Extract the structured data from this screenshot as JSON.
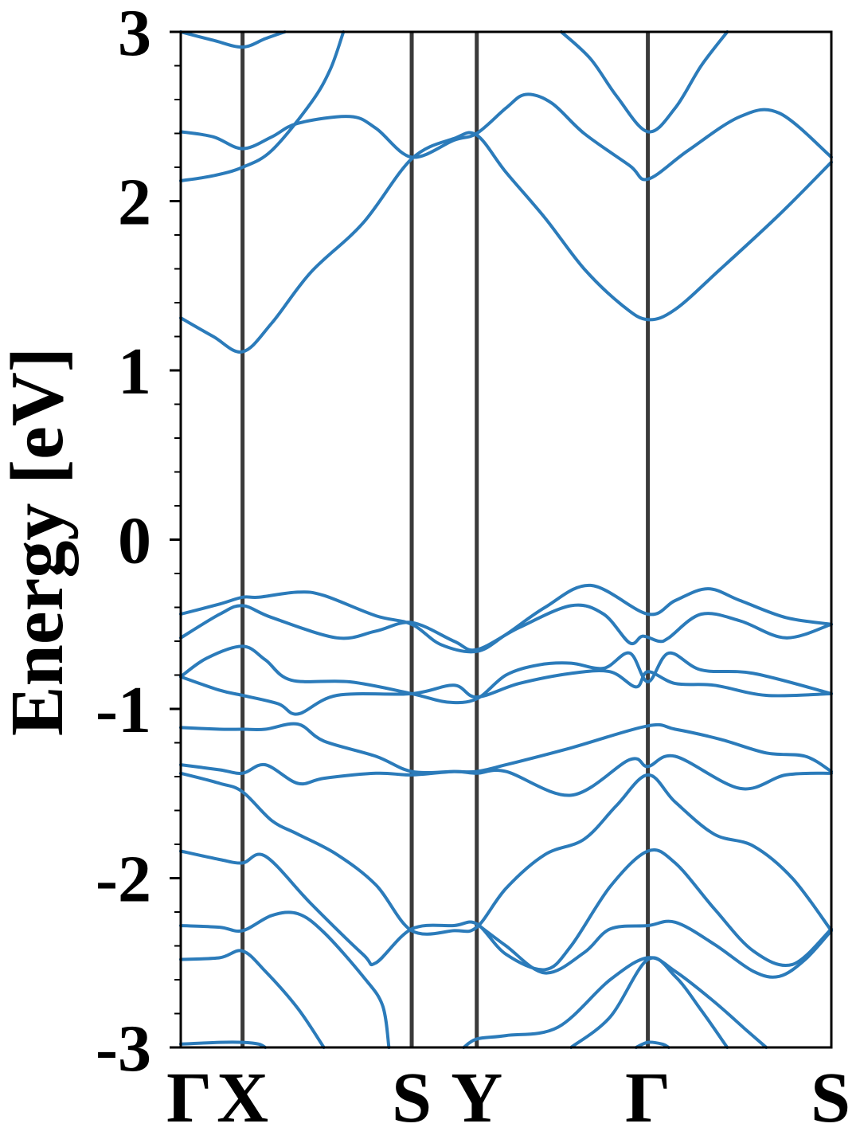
{
  "chart_data": {
    "type": "line",
    "title": "",
    "xlabel": "",
    "ylabel": "Energy [eV]",
    "ylim": [
      -3,
      3
    ],
    "yticks": [
      "-3",
      "-2",
      "-1",
      "0",
      "1",
      "2",
      "3"
    ],
    "minor_ytick_step": 0.2,
    "grid": false,
    "legend": "none",
    "line_color": "#2b7bba",
    "symmetry_line_color": "#3a3a3a",
    "kpath_labels": [
      "Γ",
      "X",
      "S",
      "Y",
      "Γ",
      "S"
    ],
    "kpath_positions": [
      0,
      0.095,
      0.355,
      0.455,
      0.718,
      1.0
    ],
    "bands": [
      [
        [
          0.0,
          2.41
        ],
        [
          0.05,
          2.38
        ],
        [
          0.095,
          2.31
        ],
        [
          0.14,
          2.38
        ],
        [
          0.18,
          2.46
        ],
        [
          0.26,
          2.5
        ],
        [
          0.3,
          2.43
        ],
        [
          0.355,
          2.26
        ],
        [
          0.42,
          2.36
        ],
        [
          0.455,
          2.4
        ],
        [
          0.5,
          2.55
        ],
        [
          0.53,
          2.63
        ],
        [
          0.57,
          2.58
        ],
        [
          0.62,
          2.4
        ],
        [
          0.69,
          2.21
        ],
        [
          0.718,
          2.13
        ],
        [
          0.78,
          2.3
        ],
        [
          0.86,
          2.5
        ],
        [
          0.92,
          2.52
        ],
        [
          1.0,
          2.26
        ]
      ],
      [
        [
          0.0,
          2.12
        ],
        [
          0.05,
          2.15
        ],
        [
          0.095,
          2.2
        ],
        [
          0.14,
          2.3
        ],
        [
          0.2,
          2.58
        ],
        [
          0.23,
          2.78
        ],
        [
          0.25,
          3.0
        ]
      ],
      [
        [
          0.0,
          1.31
        ],
        [
          0.05,
          1.2
        ],
        [
          0.095,
          1.11
        ],
        [
          0.14,
          1.28
        ],
        [
          0.2,
          1.58
        ],
        [
          0.28,
          1.87
        ],
        [
          0.355,
          2.25
        ],
        [
          0.42,
          2.37
        ],
        [
          0.455,
          2.39
        ],
        [
          0.5,
          2.17
        ],
        [
          0.56,
          1.9
        ],
        [
          0.62,
          1.6
        ],
        [
          0.68,
          1.38
        ],
        [
          0.718,
          1.3
        ],
        [
          0.76,
          1.36
        ],
        [
          0.83,
          1.6
        ],
        [
          0.92,
          1.92
        ],
        [
          1.0,
          2.23
        ]
      ],
      [
        [
          0.0,
          3.0
        ],
        [
          0.05,
          2.95
        ],
        [
          0.095,
          2.91
        ],
        [
          0.13,
          2.96
        ],
        [
          0.16,
          3.0
        ]
      ],
      [
        [
          0.585,
          3.0
        ],
        [
          0.63,
          2.84
        ],
        [
          0.67,
          2.62
        ],
        [
          0.718,
          2.41
        ],
        [
          0.76,
          2.55
        ],
        [
          0.8,
          2.8
        ],
        [
          0.84,
          3.0
        ]
      ],
      [
        [
          0.0,
          -0.44
        ],
        [
          0.06,
          -0.38
        ],
        [
          0.095,
          -0.34
        ],
        [
          0.12,
          -0.34
        ],
        [
          0.18,
          -0.31
        ],
        [
          0.22,
          -0.33
        ],
        [
          0.3,
          -0.45
        ],
        [
          0.355,
          -0.5
        ],
        [
          0.4,
          -0.62
        ],
        [
          0.455,
          -0.66
        ],
        [
          0.5,
          -0.56
        ],
        [
          0.56,
          -0.4
        ],
        [
          0.63,
          -0.27
        ],
        [
          0.718,
          -0.44
        ],
        [
          0.76,
          -0.36
        ],
        [
          0.81,
          -0.29
        ],
        [
          0.86,
          -0.36
        ],
        [
          0.93,
          -0.46
        ],
        [
          1.0,
          -0.5
        ]
      ],
      [
        [
          0.0,
          -0.58
        ],
        [
          0.06,
          -0.44
        ],
        [
          0.095,
          -0.39
        ],
        [
          0.14,
          -0.46
        ],
        [
          0.24,
          -0.58
        ],
        [
          0.3,
          -0.54
        ],
        [
          0.355,
          -0.49
        ],
        [
          0.42,
          -0.6
        ],
        [
          0.455,
          -0.65
        ],
        [
          0.52,
          -0.52
        ],
        [
          0.6,
          -0.39
        ],
        [
          0.65,
          -0.44
        ],
        [
          0.69,
          -0.61
        ],
        [
          0.71,
          -0.57
        ],
        [
          0.735,
          -0.6
        ],
        [
          0.75,
          -0.58
        ],
        [
          0.8,
          -0.44
        ],
        [
          0.86,
          -0.48
        ],
        [
          0.93,
          -0.58
        ],
        [
          1.0,
          -0.5
        ]
      ],
      [
        [
          0.0,
          -0.81
        ],
        [
          0.04,
          -0.7
        ],
        [
          0.095,
          -0.63
        ],
        [
          0.13,
          -0.71
        ],
        [
          0.17,
          -0.83
        ],
        [
          0.26,
          -0.84
        ],
        [
          0.355,
          -0.91
        ],
        [
          0.41,
          -0.96
        ],
        [
          0.455,
          -0.94
        ],
        [
          0.5,
          -0.8
        ],
        [
          0.55,
          -0.74
        ],
        [
          0.6,
          -0.73
        ],
        [
          0.65,
          -0.76
        ],
        [
          0.69,
          -0.67
        ],
        [
          0.718,
          -0.84
        ],
        [
          0.75,
          -0.67
        ],
        [
          0.8,
          -0.77
        ],
        [
          0.88,
          -0.79
        ],
        [
          1.0,
          -0.91
        ]
      ],
      [
        [
          0.0,
          -0.81
        ],
        [
          0.06,
          -0.89
        ],
        [
          0.095,
          -0.92
        ],
        [
          0.15,
          -0.97
        ],
        [
          0.18,
          -1.03
        ],
        [
          0.24,
          -0.92
        ],
        [
          0.355,
          -0.91
        ],
        [
          0.42,
          -0.86
        ],
        [
          0.455,
          -0.93
        ],
        [
          0.52,
          -0.85
        ],
        [
          0.6,
          -0.79
        ],
        [
          0.66,
          -0.78
        ],
        [
          0.7,
          -0.87
        ],
        [
          0.718,
          -0.78
        ],
        [
          0.76,
          -0.85
        ],
        [
          0.82,
          -0.86
        ],
        [
          0.9,
          -0.92
        ],
        [
          1.0,
          -0.91
        ]
      ],
      [
        [
          0.0,
          -1.11
        ],
        [
          0.06,
          -1.12
        ],
        [
          0.095,
          -1.12
        ],
        [
          0.13,
          -1.12
        ],
        [
          0.18,
          -1.09
        ],
        [
          0.22,
          -1.19
        ],
        [
          0.3,
          -1.28
        ],
        [
          0.355,
          -1.37
        ],
        [
          0.42,
          -1.37
        ],
        [
          0.455,
          -1.37
        ],
        [
          0.5,
          -1.33
        ],
        [
          0.6,
          -1.23
        ],
        [
          0.718,
          -1.1
        ],
        [
          0.76,
          -1.12
        ],
        [
          0.83,
          -1.18
        ],
        [
          0.9,
          -1.26
        ],
        [
          0.96,
          -1.28
        ],
        [
          1.0,
          -1.37
        ]
      ],
      [
        [
          0.0,
          -1.33
        ],
        [
          0.06,
          -1.36
        ],
        [
          0.095,
          -1.38
        ],
        [
          0.13,
          -1.33
        ],
        [
          0.18,
          -1.44
        ],
        [
          0.22,
          -1.41
        ],
        [
          0.3,
          -1.38
        ],
        [
          0.355,
          -1.39
        ],
        [
          0.42,
          -1.37
        ],
        [
          0.455,
          -1.38
        ],
        [
          0.5,
          -1.37
        ],
        [
          0.6,
          -1.51
        ],
        [
          0.69,
          -1.3
        ],
        [
          0.718,
          -1.34
        ],
        [
          0.76,
          -1.28
        ],
        [
          0.86,
          -1.47
        ],
        [
          0.93,
          -1.39
        ],
        [
          1.0,
          -1.38
        ]
      ],
      [
        [
          0.0,
          -1.38
        ],
        [
          0.06,
          -1.44
        ],
        [
          0.095,
          -1.49
        ],
        [
          0.14,
          -1.66
        ],
        [
          0.18,
          -1.74
        ],
        [
          0.24,
          -1.86
        ],
        [
          0.3,
          -2.04
        ],
        [
          0.355,
          -2.31
        ],
        [
          0.42,
          -2.31
        ],
        [
          0.455,
          -2.29
        ],
        [
          0.5,
          -2.06
        ],
        [
          0.56,
          -1.86
        ],
        [
          0.62,
          -1.77
        ],
        [
          0.67,
          -1.57
        ],
        [
          0.718,
          -1.39
        ],
        [
          0.76,
          -1.55
        ],
        [
          0.82,
          -1.74
        ],
        [
          0.88,
          -1.81
        ],
        [
          0.94,
          -2.0
        ],
        [
          1.0,
          -2.31
        ]
      ],
      [
        [
          0.0,
          -1.84
        ],
        [
          0.06,
          -1.89
        ],
        [
          0.095,
          -1.91
        ],
        [
          0.13,
          -1.87
        ],
        [
          0.2,
          -2.15
        ],
        [
          0.28,
          -2.45
        ],
        [
          0.3,
          -2.5
        ],
        [
          0.355,
          -2.3
        ],
        [
          0.42,
          -2.28
        ],
        [
          0.455,
          -2.27
        ],
        [
          0.5,
          -2.45
        ],
        [
          0.56,
          -2.54
        ],
        [
          0.6,
          -2.4
        ],
        [
          0.66,
          -2.05
        ],
        [
          0.718,
          -1.84
        ],
        [
          0.76,
          -1.91
        ],
        [
          0.82,
          -2.18
        ],
        [
          0.88,
          -2.43
        ],
        [
          0.94,
          -2.51
        ],
        [
          1.0,
          -2.3
        ]
      ],
      [
        [
          0.0,
          -2.28
        ],
        [
          0.06,
          -2.29
        ],
        [
          0.095,
          -2.31
        ],
        [
          0.14,
          -2.22
        ],
        [
          0.18,
          -2.21
        ],
        [
          0.22,
          -2.32
        ],
        [
          0.28,
          -2.58
        ],
        [
          0.31,
          -2.75
        ],
        [
          0.32,
          -3.0
        ]
      ],
      [
        [
          0.0,
          -2.48
        ],
        [
          0.06,
          -2.47
        ],
        [
          0.095,
          -2.43
        ],
        [
          0.13,
          -2.55
        ],
        [
          0.18,
          -2.77
        ],
        [
          0.22,
          -3.0
        ]
      ],
      [
        [
          0.455,
          -2.27
        ],
        [
          0.5,
          -2.4
        ],
        [
          0.56,
          -2.56
        ],
        [
          0.62,
          -2.44
        ],
        [
          0.66,
          -2.3
        ],
        [
          0.718,
          -2.28
        ],
        [
          0.76,
          -2.26
        ],
        [
          0.82,
          -2.39
        ],
        [
          0.88,
          -2.55
        ],
        [
          0.92,
          -2.58
        ],
        [
          0.96,
          -2.48
        ],
        [
          1.0,
          -2.31
        ]
      ],
      [
        [
          0.435,
          -3.0
        ],
        [
          0.455,
          -2.95
        ],
        [
          0.5,
          -2.93
        ],
        [
          0.58,
          -2.88
        ],
        [
          0.66,
          -2.6
        ],
        [
          0.718,
          -2.47
        ],
        [
          0.76,
          -2.55
        ],
        [
          0.82,
          -2.73
        ],
        [
          0.87,
          -2.9
        ],
        [
          0.9,
          -3.0
        ]
      ],
      [
        [
          0.0,
          -2.98
        ],
        [
          0.06,
          -2.97
        ],
        [
          0.095,
          -2.97
        ],
        [
          0.12,
          -2.98
        ],
        [
          0.13,
          -3.0
        ]
      ],
      [
        [
          0.6,
          -3.0
        ],
        [
          0.66,
          -2.82
        ],
        [
          0.718,
          -2.48
        ],
        [
          0.76,
          -2.58
        ],
        [
          0.8,
          -2.78
        ],
        [
          0.84,
          -3.0
        ]
      ],
      [
        [
          0.7,
          -3.0
        ],
        [
          0.718,
          -2.97
        ],
        [
          0.74,
          -2.98
        ],
        [
          0.75,
          -3.0
        ]
      ]
    ]
  }
}
